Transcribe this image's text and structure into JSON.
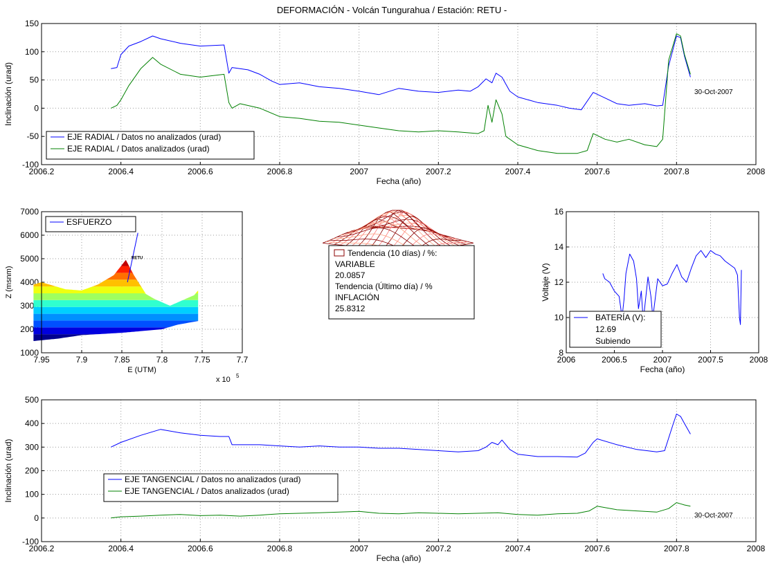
{
  "figure": {
    "title": "DEFORMACIÓN - Volcán Tungurahua  /  Estación: RETU -"
  },
  "colors": {
    "blue": "#0000ff",
    "green": "#008000",
    "darkred": "#8b0000",
    "grid": "#9a9a9a"
  },
  "chart_data": [
    {
      "id": "radial",
      "type": "line",
      "xlabel": "Fecha (año)",
      "ylabel": "Inclinación (urad)",
      "xlim": [
        2006.2,
        2008
      ],
      "ylim": [
        -100,
        150
      ],
      "xticks": [
        2006.2,
        2006.4,
        2006.6,
        2006.8,
        2007,
        2007.2,
        2007.4,
        2007.6,
        2007.8,
        2008
      ],
      "xtick_labels": [
        "2006.2",
        "2006.4",
        "2006.6",
        "2006.8",
        "2007",
        "2007.2",
        "2007.4",
        "2007.6",
        "2007.8",
        "2008"
      ],
      "yticks": [
        -100,
        -50,
        0,
        50,
        100,
        150
      ],
      "ytick_labels": [
        "-100",
        "-50",
        "0",
        "50",
        "100",
        "150"
      ],
      "grid": true,
      "legend_position": "bottom-left",
      "annotation": "30-Oct-2007",
      "series": [
        {
          "name": "EJE RADIAL / Datos no analizados (urad)",
          "color": "blue",
          "x": [
            2006.375,
            2006.39,
            2006.4,
            2006.42,
            2006.45,
            2006.48,
            2006.5,
            2006.55,
            2006.6,
            2006.66,
            2006.672,
            2006.68,
            2006.72,
            2006.75,
            2006.78,
            2006.8,
            2006.85,
            2006.9,
            2006.95,
            2007.0,
            2007.05,
            2007.1,
            2007.15,
            2007.2,
            2007.25,
            2007.28,
            2007.3,
            2007.32,
            2007.335,
            2007.345,
            2007.36,
            2007.38,
            2007.4,
            2007.45,
            2007.5,
            2007.53,
            2007.56,
            2007.59,
            2007.62,
            2007.65,
            2007.68,
            2007.72,
            2007.75,
            2007.765,
            2007.78,
            2007.8,
            2007.81,
            2007.82,
            2007.835
          ],
          "y": [
            70,
            72,
            95,
            110,
            118,
            128,
            123,
            115,
            110,
            112,
            62,
            72,
            68,
            60,
            48,
            42,
            45,
            38,
            35,
            30,
            24,
            35,
            30,
            28,
            32,
            30,
            38,
            52,
            45,
            62,
            55,
            30,
            20,
            10,
            5,
            0,
            -3,
            28,
            18,
            8,
            5,
            8,
            4,
            5,
            75,
            128,
            125,
            92,
            55
          ]
        },
        {
          "name": "EJE RADIAL / Datos analizados (urad)",
          "color": "green",
          "x": [
            2006.375,
            2006.39,
            2006.4,
            2006.42,
            2006.45,
            2006.48,
            2006.5,
            2006.55,
            2006.6,
            2006.66,
            2006.672,
            2006.68,
            2006.7,
            2006.75,
            2006.8,
            2006.85,
            2006.9,
            2006.95,
            2007.0,
            2007.05,
            2007.1,
            2007.15,
            2007.2,
            2007.25,
            2007.3,
            2007.315,
            2007.325,
            2007.335,
            2007.345,
            2007.36,
            2007.37,
            2007.4,
            2007.45,
            2007.5,
            2007.55,
            2007.575,
            2007.59,
            2007.62,
            2007.65,
            2007.68,
            2007.72,
            2007.75,
            2007.765,
            2007.78,
            2007.8,
            2007.81,
            2007.82,
            2007.835
          ],
          "y": [
            0,
            5,
            15,
            40,
            70,
            90,
            78,
            60,
            55,
            60,
            10,
            0,
            8,
            0,
            -15,
            -18,
            -23,
            -25,
            -30,
            -35,
            -40,
            -42,
            -40,
            -42,
            -45,
            -40,
            5,
            -25,
            15,
            -10,
            -50,
            -65,
            -75,
            -80,
            -80,
            -75,
            -45,
            -55,
            -60,
            -55,
            -65,
            -68,
            -55,
            85,
            132,
            128,
            95,
            60
          ]
        }
      ]
    },
    {
      "id": "esfuerzo",
      "type": "area",
      "xlabel": "E (UTM)",
      "ylabel": "Z (msnm)",
      "xlim": [
        7.95,
        7.7
      ],
      "ylim": [
        1000,
        7000
      ],
      "x_reversed": true,
      "xticks": [
        7.95,
        7.9,
        7.85,
        7.8,
        7.75,
        7.7
      ],
      "xtick_labels": [
        "7.95",
        "7.9",
        "7.85",
        "7.8",
        "7.75",
        "7.7"
      ],
      "yticks": [
        1000,
        2000,
        3000,
        4000,
        5000,
        6000,
        7000
      ],
      "ytick_labels": [
        "1000",
        "2000",
        "3000",
        "4000",
        "5000",
        "6000",
        "7000"
      ],
      "exponent_label": "x 10",
      "exponent_power": "5",
      "grid": true,
      "legend_position": "top-left",
      "station_label": "RETU",
      "series": [
        {
          "name": "ESFUERZO",
          "color": "blue",
          "x": [
            7.843,
            7.83
          ],
          "y": [
            4000,
            6100
          ]
        }
      ],
      "profile_top": {
        "x": [
          7.96,
          7.95,
          7.92,
          7.9,
          7.88,
          7.86,
          7.845,
          7.835,
          7.82,
          7.81,
          7.79,
          7.78,
          7.77,
          7.76,
          7.755
        ],
        "y": [
          3900,
          4000,
          3700,
          3650,
          3900,
          4300,
          4950,
          4300,
          3500,
          3300,
          3000,
          3150,
          3300,
          3450,
          3650
        ]
      },
      "profile_bottom": {
        "x": [
          7.96,
          7.93,
          7.9,
          7.85,
          7.8,
          7.78,
          7.755
        ],
        "y": [
          1500,
          1600,
          1750,
          1850,
          2000,
          2200,
          2350
        ]
      }
    },
    {
      "id": "bateria",
      "type": "line",
      "xlabel": "Fecha (año)",
      "ylabel": "Voltaje (V)",
      "xlim": [
        2006,
        2008
      ],
      "ylim": [
        8,
        16
      ],
      "xticks": [
        2006,
        2006.5,
        2007,
        2007.5,
        2008
      ],
      "xtick_labels": [
        "2006",
        "2006.5",
        "2007",
        "2007.5",
        "2008"
      ],
      "yticks": [
        8,
        10,
        12,
        14,
        16
      ],
      "ytick_labels": [
        "8",
        "10",
        "12",
        "14",
        "16"
      ],
      "grid": true,
      "legend_position": "bottom-left",
      "series": [
        {
          "name": "BATERÍA (V):",
          "color": "blue",
          "x": [
            2006.38,
            2006.4,
            2006.45,
            2006.5,
            2006.55,
            2006.58,
            2006.6,
            2006.62,
            2006.66,
            2006.7,
            2006.73,
            2006.75,
            2006.78,
            2006.8,
            2006.85,
            2006.88,
            2006.9,
            2006.95,
            2007.0,
            2007.05,
            2007.1,
            2007.15,
            2007.2,
            2007.25,
            2007.3,
            2007.35,
            2007.4,
            2007.45,
            2007.5,
            2007.55,
            2007.6,
            2007.65,
            2007.7,
            2007.75,
            2007.78,
            2007.8,
            2007.81,
            2007.82
          ],
          "y": [
            12.5,
            12.2,
            12.0,
            11.5,
            11.2,
            10.0,
            11.0,
            12.5,
            13.6,
            13.2,
            12.2,
            10.5,
            11.5,
            9.8,
            12.3,
            11.2,
            10.0,
            12.2,
            11.8,
            11.9,
            12.5,
            13.0,
            12.3,
            12.0,
            12.8,
            13.5,
            13.8,
            13.4,
            13.8,
            13.6,
            13.5,
            13.2,
            13.0,
            12.8,
            12.4,
            10.0,
            9.6,
            12.7
          ]
        }
      ]
    },
    {
      "id": "tangencial",
      "type": "line",
      "xlabel": "Fecha (año)",
      "ylabel": "Inclinación (urad)",
      "xlim": [
        2006.2,
        2008
      ],
      "ylim": [
        -100,
        500
      ],
      "xticks": [
        2006.2,
        2006.4,
        2006.6,
        2006.8,
        2007,
        2007.2,
        2007.4,
        2007.6,
        2007.8,
        2008
      ],
      "xtick_labels": [
        "2006.2",
        "2006.4",
        "2006.6",
        "2006.8",
        "2007",
        "2007.2",
        "2007.4",
        "2007.6",
        "2007.8",
        "2008"
      ],
      "yticks": [
        -100,
        0,
        100,
        200,
        300,
        400,
        500
      ],
      "ytick_labels": [
        "-100",
        "0",
        "100",
        "200",
        "300",
        "400",
        "500"
      ],
      "grid": true,
      "legend_position": "center-left",
      "annotation": "30-Oct-2007",
      "series": [
        {
          "name": "EJE TANGENCIAL / Datos no analizados (urad)",
          "color": "blue",
          "x": [
            2006.375,
            2006.4,
            2006.45,
            2006.5,
            2006.55,
            2006.6,
            2006.65,
            2006.672,
            2006.68,
            2006.75,
            2006.8,
            2006.85,
            2006.9,
            2006.95,
            2007.0,
            2007.05,
            2007.1,
            2007.15,
            2007.2,
            2007.25,
            2007.3,
            2007.32,
            2007.335,
            2007.35,
            2007.36,
            2007.38,
            2007.4,
            2007.45,
            2007.5,
            2007.55,
            2007.57,
            2007.59,
            2007.6,
            2007.65,
            2007.7,
            2007.75,
            2007.77,
            2007.79,
            2007.8,
            2007.81,
            2007.82,
            2007.835
          ],
          "y": [
            300,
            320,
            350,
            375,
            360,
            350,
            345,
            345,
            310,
            310,
            305,
            300,
            305,
            300,
            300,
            295,
            295,
            290,
            285,
            280,
            285,
            300,
            320,
            310,
            330,
            290,
            270,
            260,
            260,
            258,
            275,
            320,
            335,
            310,
            290,
            280,
            285,
            390,
            440,
            430,
            400,
            355
          ]
        },
        {
          "name": "EJE TANGENCIAL / Datos analizados (urad)",
          "color": "green",
          "x": [
            2006.375,
            2006.4,
            2006.45,
            2006.5,
            2006.55,
            2006.6,
            2006.65,
            2006.7,
            2006.75,
            2006.8,
            2006.85,
            2006.9,
            2006.95,
            2007.0,
            2007.05,
            2007.1,
            2007.15,
            2007.2,
            2007.25,
            2007.3,
            2007.35,
            2007.4,
            2007.45,
            2007.5,
            2007.55,
            2007.58,
            2007.6,
            2007.65,
            2007.7,
            2007.75,
            2007.78,
            2007.8,
            2007.81,
            2007.82,
            2007.835
          ],
          "y": [
            0,
            5,
            8,
            12,
            15,
            10,
            12,
            8,
            12,
            18,
            20,
            22,
            25,
            28,
            20,
            18,
            22,
            20,
            18,
            20,
            22,
            15,
            12,
            18,
            20,
            30,
            50,
            35,
            30,
            25,
            40,
            65,
            60,
            55,
            50
          ]
        }
      ]
    }
  ],
  "info_box": {
    "lines": [
      "Tendencia (10 días) / %:",
      "VARIABLE",
      "20.0857",
      "Tendencia (Último día) / %",
      "INFLACIÓN",
      "25.8312"
    ]
  },
  "battery_box": {
    "value": "12.69",
    "status": "Subiendo"
  }
}
